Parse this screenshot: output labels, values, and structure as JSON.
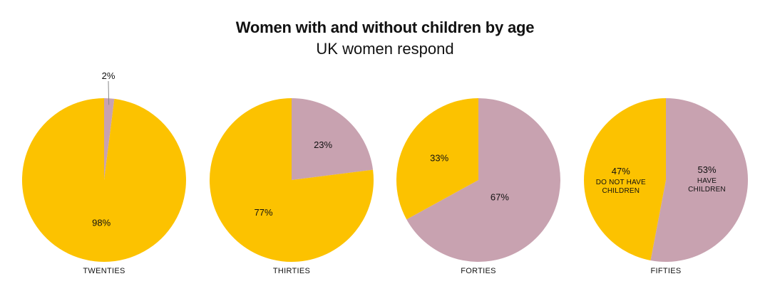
{
  "title": "Women with and without children by age",
  "subtitle": "UK women respond",
  "colors": {
    "have_children": "#c8a2b0",
    "no_children": "#fcc200"
  },
  "chart_data": {
    "type": "pie",
    "title": "Women with and without children by age",
    "subtitle": "UK women respond",
    "series_names": [
      "HAVE CHILDREN",
      "DO NOT HAVE CHILDREN"
    ],
    "pies": [
      {
        "category": "TWENTIES",
        "have_children": 2,
        "no_children": 98,
        "have_label": "2%",
        "no_label": "98%"
      },
      {
        "category": "THIRTIES",
        "have_children": 23,
        "no_children": 77,
        "have_label": "23%",
        "no_label": "77%"
      },
      {
        "category": "FORTIES",
        "have_children": 67,
        "no_children": 33,
        "have_label": "67%",
        "no_label": "33%"
      },
      {
        "category": "FIFTIES",
        "have_children": 53,
        "no_children": 47,
        "have_label": "53%",
        "no_label": "47%",
        "have_sub": [
          "HAVE",
          "CHILDREN"
        ],
        "no_sub": [
          "DO NOT HAVE",
          "CHILDREN"
        ]
      }
    ]
  }
}
